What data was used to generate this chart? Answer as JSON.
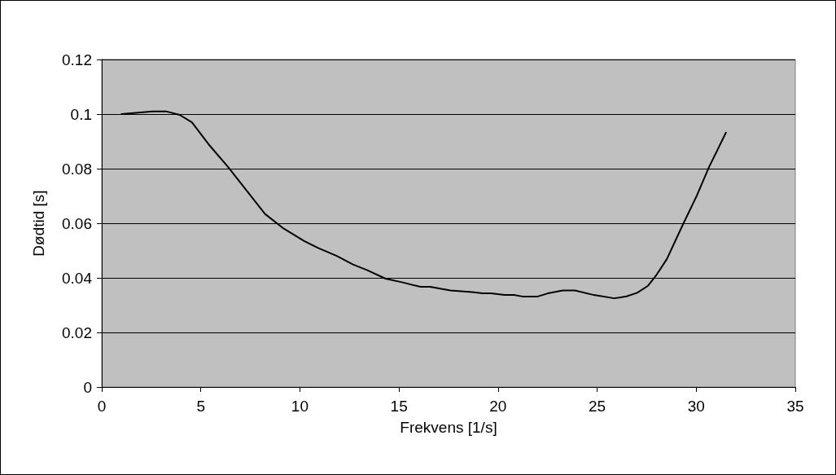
{
  "chart_data": {
    "type": "line",
    "xlabel": "Frekvens [1/s]",
    "ylabel": "Dødtid [s]",
    "xlim": [
      0,
      35
    ],
    "xticks": [
      0,
      5,
      10,
      15,
      20,
      25,
      30,
      35
    ],
    "ylim": [
      0,
      0.12
    ],
    "yticks": [
      0,
      0.02,
      0.04,
      0.06,
      0.08,
      0.1,
      0.12
    ],
    "grid": "y",
    "marker": "none",
    "line_style": "solid",
    "series": [
      {
        "color": "#000000",
        "x": [
          1.0,
          2.57,
          3.24,
          3.93,
          4.55,
          5.44,
          6.39,
          7.35,
          8.24,
          9.19,
          10.22,
          10.9,
          11.86,
          12.68,
          13.4,
          14.32,
          15.14,
          16.09,
          16.57,
          17.6,
          18.69,
          19.23,
          19.64,
          20.33,
          20.8,
          21.28,
          21.97,
          22.51,
          23.27,
          23.88,
          24.84,
          25.86,
          26.48,
          27.02,
          27.57,
          27.98,
          28.52,
          29.34,
          30.03,
          30.64,
          30.98,
          31.5
        ],
        "values": [
          0.1,
          0.101,
          0.101,
          0.0997,
          0.097,
          0.0885,
          0.0805,
          0.0716,
          0.0634,
          0.058,
          0.0535,
          0.051,
          0.048,
          0.0449,
          0.0428,
          0.0397,
          0.0384,
          0.0367,
          0.0367,
          0.0354,
          0.0348,
          0.0343,
          0.0343,
          0.0337,
          0.0337,
          0.0331,
          0.0331,
          0.0343,
          0.0354,
          0.0354,
          0.0337,
          0.0325,
          0.0332,
          0.0345,
          0.0371,
          0.0409,
          0.0469,
          0.0597,
          0.0701,
          0.0805,
          0.0855,
          0.0932
        ]
      }
    ]
  }
}
